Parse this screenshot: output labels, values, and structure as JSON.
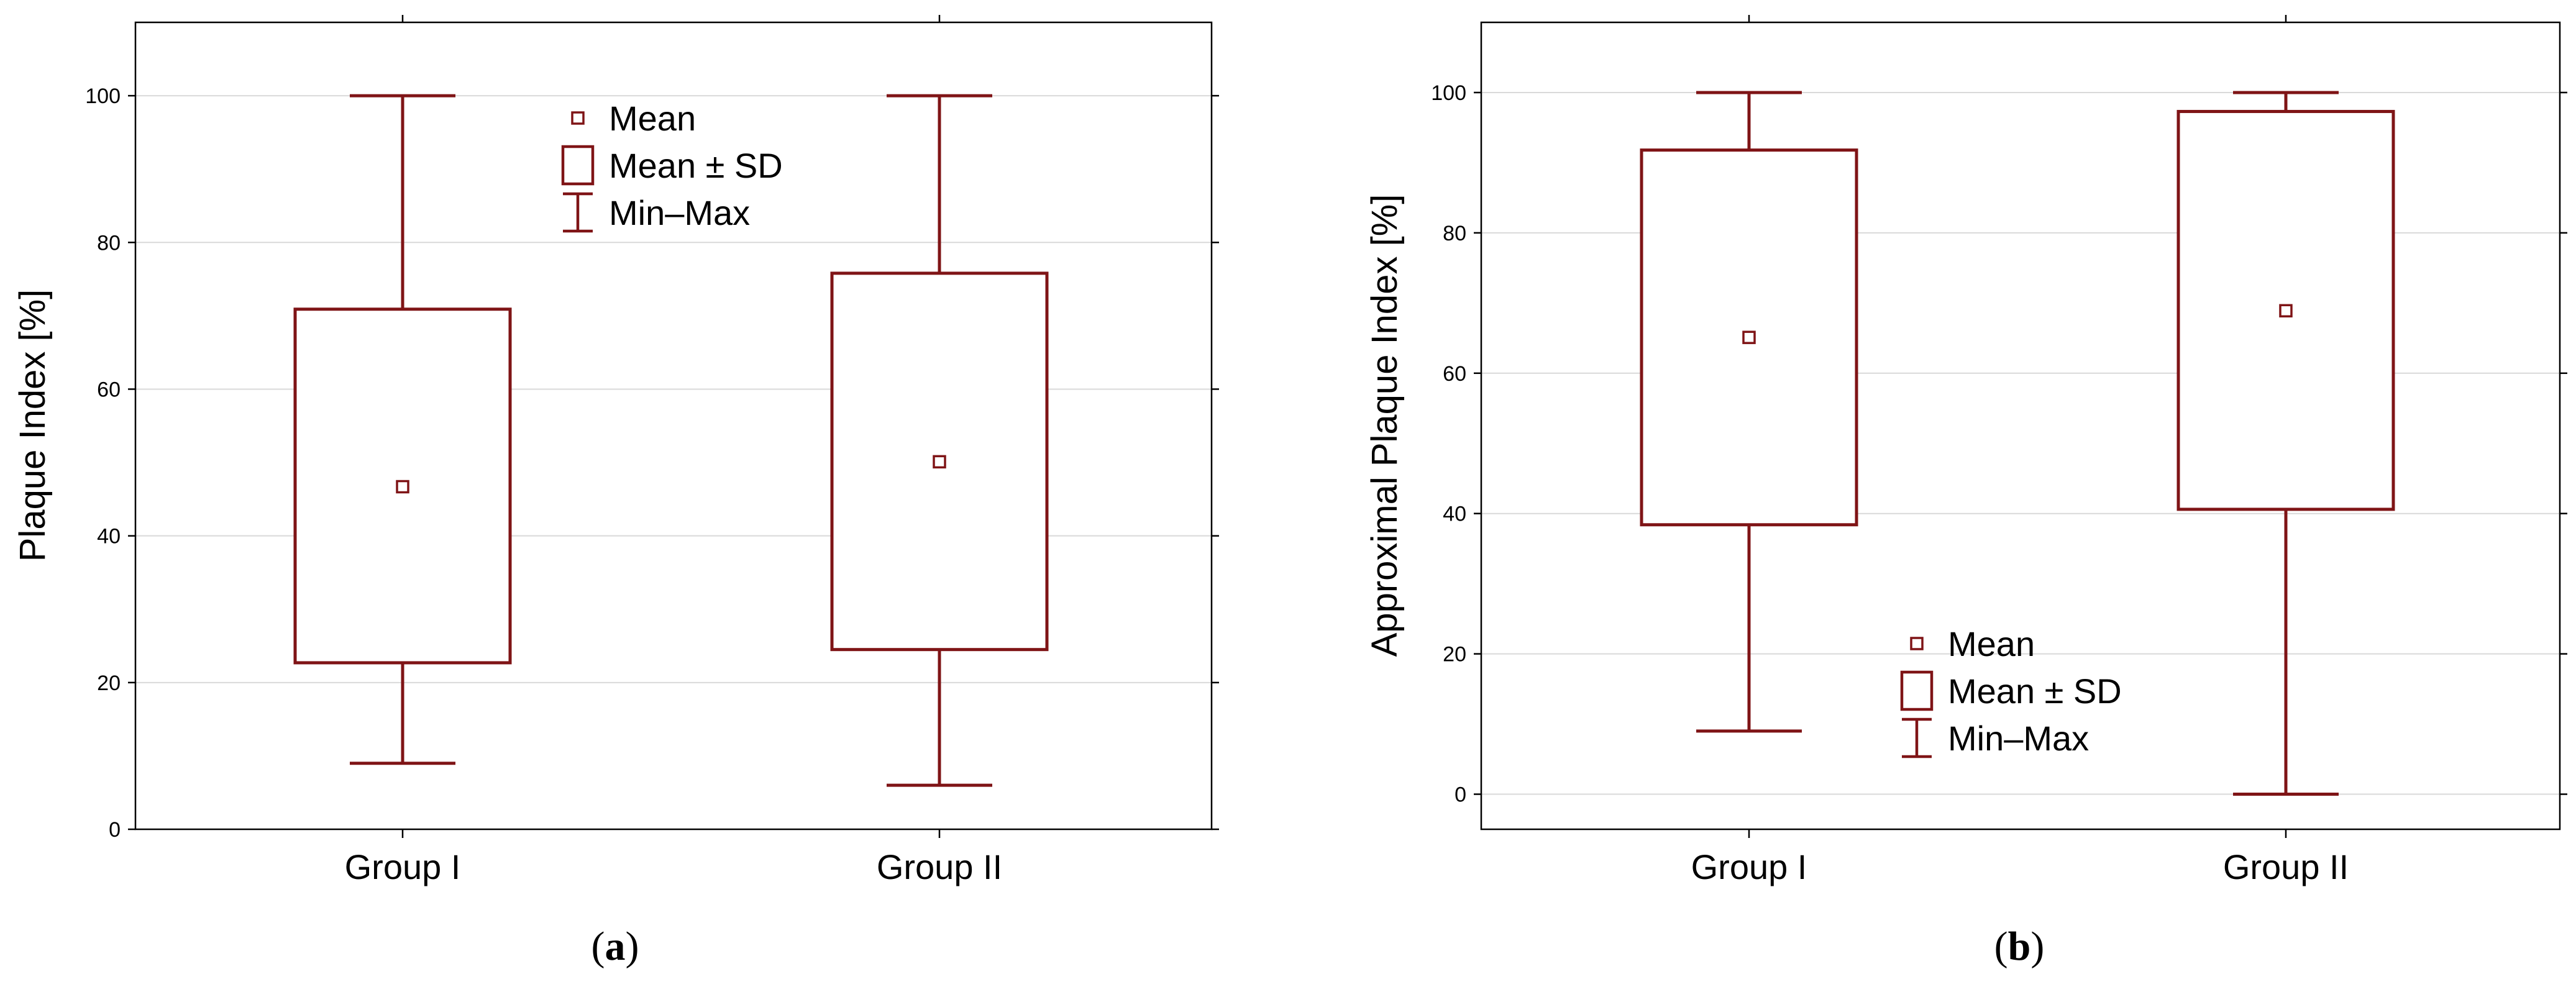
{
  "chart_data": [
    {
      "type": "boxplot",
      "panel_label": "a",
      "ylabel": "Plaque Index  [%]",
      "xlabel": "",
      "ylim": [
        0,
        110
      ],
      "yticks": [
        0,
        20,
        40,
        60,
        80,
        100
      ],
      "grid": true,
      "legend_position": "top-center",
      "legend": [
        {
          "label": "Mean",
          "marker": "small-square"
        },
        {
          "label": "Mean ± SD",
          "marker": "box"
        },
        {
          "label": "Min–Max",
          "marker": "whisker"
        }
      ],
      "categories": [
        "Group I",
        "Group II"
      ],
      "series": [
        {
          "category": "Group I",
          "mean": 46.7,
          "sd_low": 22.7,
          "sd_high": 70.9,
          "min": 9,
          "max": 100
        },
        {
          "category": "Group II",
          "mean": 50.1,
          "sd_low": 24.5,
          "sd_high": 75.8,
          "min": 6,
          "max": 100
        }
      ]
    },
    {
      "type": "boxplot",
      "panel_label": "b",
      "ylabel": "Approximal Plaque Index  [%]",
      "xlabel": "",
      "ylim": [
        -5,
        110
      ],
      "yticks": [
        0,
        20,
        40,
        60,
        80,
        100
      ],
      "grid": true,
      "legend_position": "bottom-center",
      "legend": [
        {
          "label": "Mean",
          "marker": "small-square"
        },
        {
          "label": "Mean ± SD",
          "marker": "box"
        },
        {
          "label": "Min–Max",
          "marker": "whisker"
        }
      ],
      "categories": [
        "Group I",
        "Group II"
      ],
      "series": [
        {
          "category": "Group I",
          "mean": 65.1,
          "sd_low": 38.4,
          "sd_high": 91.8,
          "min": 9,
          "max": 100
        },
        {
          "category": "Group II",
          "mean": 68.9,
          "sd_low": 40.6,
          "sd_high": 97.3,
          "min": 0,
          "max": 100
        }
      ]
    }
  ],
  "colors": {
    "series": "#7f1416",
    "grid": "#d9d9d9",
    "axes": "#000000"
  }
}
